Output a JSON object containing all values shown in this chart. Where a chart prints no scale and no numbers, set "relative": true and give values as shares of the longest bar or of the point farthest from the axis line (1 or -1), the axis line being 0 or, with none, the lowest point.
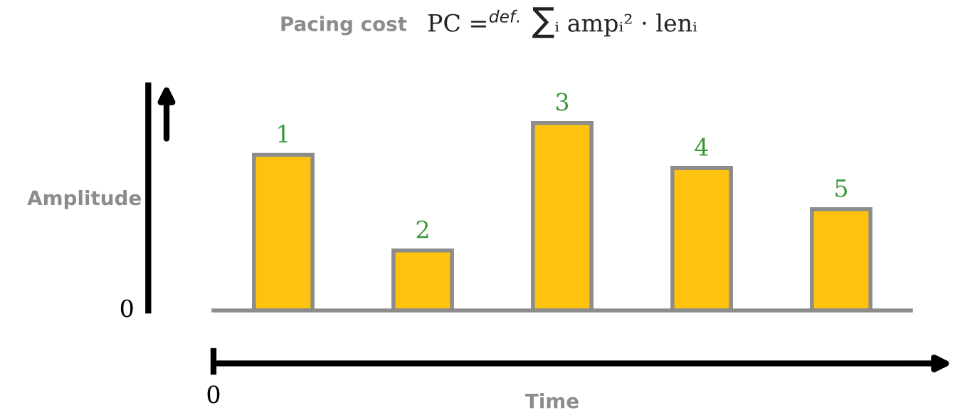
{
  "chart_data": {
    "type": "bar",
    "relative": true,
    "title": "Pacing cost",
    "subtitle": "PC =$^{def.}$ ∑ᵢ ampᵢ² · lenᵢ",
    "xlabel": "Time",
    "ylabel": "Amplitude",
    "categories": [
      null,
      null,
      null,
      null,
      null
    ],
    "values": [
      0.83,
      0.32,
      1,
      0.76,
      0.54
    ],
    "color": "#ffc20e",
    "annotations": [
      {
        "text": "1",
        "y": 0.83
      },
      {
        "text": "2",
        "y": 0.32
      },
      {
        "text": "3",
        "y": 1
      },
      {
        "text": "4",
        "y": 0.76
      },
      {
        "text": "5",
        "y": 0.54
      },
      "0",
      "0"
    ]
  }
}
